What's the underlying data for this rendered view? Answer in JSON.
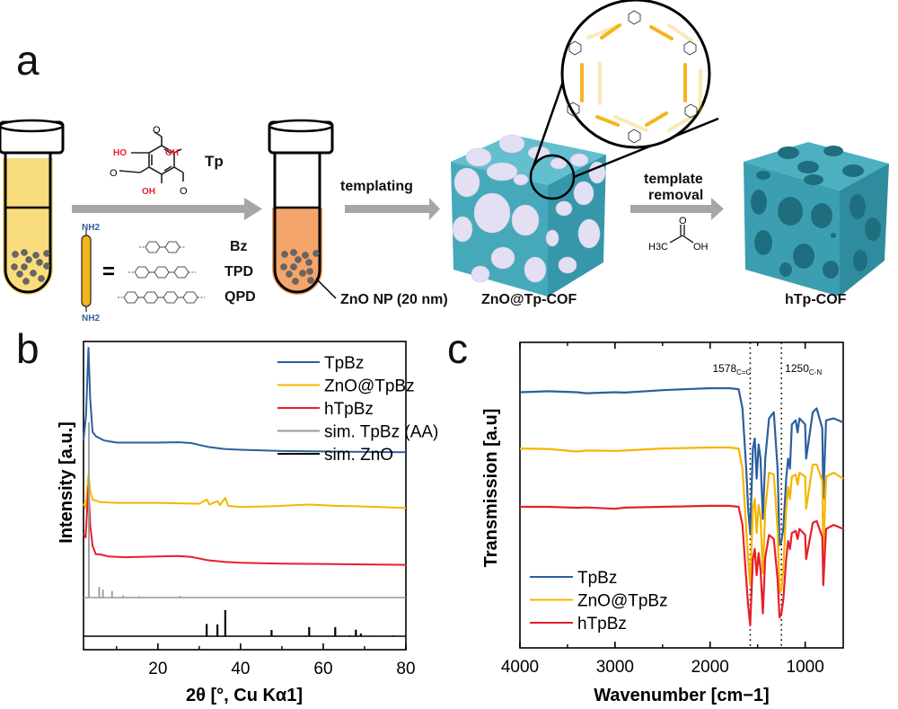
{
  "panels": {
    "a": "a",
    "b": "b",
    "c": "c"
  },
  "scheme": {
    "reagent_tp_label": "Tp",
    "tp_substituent_oh": "OH",
    "tp_substituent_ho": "HO",
    "tp_substituent_o": "O",
    "linker_end_label": "NH2",
    "equals_sign": "=",
    "linkers": [
      "Bz",
      "TPD",
      "QPD"
    ],
    "step1_label": "templating",
    "step2_label_line1": "template",
    "step2_label_line2": "removal",
    "acetic_acid": {
      "ch3": "H3C",
      "oh": "OH",
      "o": "O"
    },
    "nanoparticle_label": "ZnO NP (20 nm)",
    "intermediate_label": "ZnO@Tp-COF",
    "product_label": "hTp-COF",
    "colors": {
      "solution_yellow": "#f9dc7c",
      "solution_orange": "#f3a56c",
      "arrow_grey": "#a6a6a6",
      "cof_teal": "#3fa6b8",
      "zno_lavender": "#e3e0f3",
      "linker_gold": "#f2b61c",
      "oh_red": "#e8202a",
      "nh2_blue": "#2e5fa0"
    }
  },
  "chart_data": [
    {
      "id": "b",
      "type": "line",
      "xlabel": "2θ [°, Cu Kα1]",
      "ylabel": "Intensity [a.u.]",
      "xlim": [
        2,
        80
      ],
      "xticks": [
        20,
        40,
        60,
        80
      ],
      "minor_xticks": [
        10,
        30,
        50,
        70
      ],
      "legend_position": "top-right",
      "series": [
        {
          "name": "TpBz",
          "color": "#2c5f9e",
          "x": [
            2,
            2.6,
            3.2,
            3.6,
            4.2,
            5,
            6,
            7,
            10,
            15,
            20,
            25,
            28,
            32,
            36,
            40,
            50,
            60,
            70,
            80
          ],
          "y": [
            0.78,
            0.84,
            1.0,
            0.88,
            0.8,
            0.79,
            0.785,
            0.78,
            0.775,
            0.775,
            0.775,
            0.776,
            0.774,
            0.765,
            0.76,
            0.758,
            0.755,
            0.754,
            0.753,
            0.752
          ]
        },
        {
          "name": "ZnO@TpBz",
          "color": "#f7b500",
          "x": [
            2,
            2.5,
            3.2,
            3.6,
            4.2,
            6,
            10,
            20,
            30,
            31.8,
            32.5,
            34.4,
            35,
            36.3,
            37,
            40,
            47.5,
            56.6,
            62.9,
            68,
            80
          ],
          "y": [
            0.63,
            0.62,
            0.7,
            0.66,
            0.64,
            0.634,
            0.632,
            0.632,
            0.63,
            0.64,
            0.628,
            0.636,
            0.627,
            0.644,
            0.625,
            0.622,
            0.624,
            0.628,
            0.625,
            0.624,
            0.62
          ]
        },
        {
          "name": "hTpBz",
          "color": "#e5202a",
          "x": [
            2,
            2.5,
            3.2,
            3.6,
            4.2,
            5,
            6,
            8,
            12,
            20,
            25,
            28,
            32,
            36,
            40,
            50,
            60,
            70,
            80
          ],
          "y": [
            0.56,
            0.55,
            0.67,
            0.58,
            0.53,
            0.51,
            0.51,
            0.505,
            0.503,
            0.505,
            0.506,
            0.504,
            0.496,
            0.492,
            0.49,
            0.488,
            0.487,
            0.486,
            0.485
          ]
        },
        {
          "name": "sim. TpBz (AA)",
          "color": "#999999",
          "type": "stick",
          "x": [
            3.3,
            5.8,
            6.7,
            8.9,
            11.6,
            15.5,
            25.3
          ],
          "y": [
            0.66,
            0.04,
            0.03,
            0.025,
            0.008,
            0.005,
            0.006
          ]
        },
        {
          "name": "sim. ZnO",
          "color": "#000000",
          "type": "stick",
          "x": [
            31.8,
            34.4,
            36.3,
            47.5,
            56.6,
            62.9,
            66.4,
            67.9,
            69.1,
            72.6,
            77.0
          ],
          "y": [
            0.47,
            0.45,
            1.0,
            0.24,
            0.35,
            0.35,
            0.03,
            0.25,
            0.1,
            0.02,
            0.03
          ]
        }
      ]
    },
    {
      "id": "c",
      "type": "line",
      "xlabel": "Wavenumber [cm−1]",
      "ylabel": "Transmission [a.u]",
      "xlim": [
        4000,
        600
      ],
      "xticks": [
        4000,
        3000,
        2000,
        1000
      ],
      "minor_xticks": [
        3500,
        2500,
        1500
      ],
      "legend_position": "bottom-left",
      "annotations": [
        {
          "x": 1578,
          "label": "1578",
          "subscript": "C=C"
        },
        {
          "x": 1250,
          "label": "1250",
          "subscript": "C-N"
        }
      ],
      "series": [
        {
          "name": "TpBz",
          "color": "#2c5f9e",
          "x": [
            4000,
            3700,
            3400,
            3300,
            3000,
            2900,
            2500,
            2000,
            1800,
            1700,
            1660,
            1620,
            1600,
            1578,
            1550,
            1530,
            1510,
            1490,
            1470,
            1445,
            1420,
            1380,
            1330,
            1290,
            1270,
            1250,
            1230,
            1200,
            1180,
            1160,
            1140,
            1100,
            1080,
            1060,
            1000,
            990,
            920,
            880,
            820,
            810,
            780,
            700,
            600
          ],
          "y": [
            0.88,
            0.885,
            0.88,
            0.875,
            0.88,
            0.878,
            0.89,
            0.9,
            0.9,
            0.895,
            0.8,
            0.5,
            0.3,
            0.18,
            0.6,
            0.65,
            0.45,
            0.62,
            0.55,
            0.25,
            0.55,
            0.75,
            0.78,
            0.5,
            0.12,
            0.14,
            0.2,
            0.45,
            0.55,
            0.5,
            0.72,
            0.74,
            0.68,
            0.75,
            0.72,
            0.55,
            0.78,
            0.8,
            0.7,
            0.35,
            0.74,
            0.75,
            0.73
          ]
        },
        {
          "name": "ZnO@TpBz",
          "color": "#f7b500",
          "x": [
            4000,
            3700,
            3400,
            3300,
            3000,
            2900,
            2500,
            2000,
            1800,
            1700,
            1660,
            1620,
            1600,
            1578,
            1550,
            1530,
            1510,
            1490,
            1470,
            1445,
            1420,
            1380,
            1330,
            1290,
            1270,
            1250,
            1230,
            1200,
            1180,
            1160,
            1140,
            1100,
            1080,
            1060,
            1000,
            990,
            920,
            880,
            820,
            810,
            780,
            700,
            600
          ],
          "y": [
            0.6,
            0.598,
            0.585,
            0.59,
            0.588,
            0.59,
            0.6,
            0.605,
            0.605,
            0.6,
            0.5,
            0.2,
            0.05,
            -0.08,
            0.3,
            0.35,
            0.18,
            0.32,
            0.26,
            -0.02,
            0.3,
            0.48,
            0.47,
            0.2,
            -0.12,
            -0.1,
            0.0,
            0.3,
            0.41,
            0.35,
            0.46,
            0.47,
            0.42,
            0.48,
            0.46,
            0.3,
            0.52,
            0.52,
            0.44,
            0.08,
            0.46,
            0.48,
            0.45
          ]
        },
        {
          "name": "hTpBz",
          "color": "#e5202a",
          "x": [
            4000,
            3700,
            3400,
            3300,
            3000,
            2900,
            2500,
            2000,
            1800,
            1700,
            1660,
            1620,
            1600,
            1578,
            1550,
            1530,
            1510,
            1490,
            1470,
            1445,
            1420,
            1380,
            1330,
            1290,
            1270,
            1250,
            1230,
            1200,
            1180,
            1160,
            1140,
            1100,
            1080,
            1060,
            1000,
            990,
            920,
            880,
            820,
            810,
            780,
            700,
            600
          ],
          "y": [
            0.31,
            0.31,
            0.305,
            0.307,
            0.3,
            0.306,
            0.31,
            0.315,
            0.315,
            0.31,
            0.22,
            -0.05,
            -0.18,
            -0.28,
            0.05,
            0.1,
            -0.03,
            0.08,
            0.0,
            -0.22,
            0.06,
            0.17,
            0.15,
            -0.05,
            -0.24,
            -0.22,
            -0.15,
            0.05,
            0.14,
            0.1,
            0.18,
            0.19,
            0.15,
            0.2,
            0.17,
            0.05,
            0.23,
            0.24,
            0.16,
            -0.08,
            0.2,
            0.22,
            0.2
          ]
        }
      ]
    }
  ]
}
